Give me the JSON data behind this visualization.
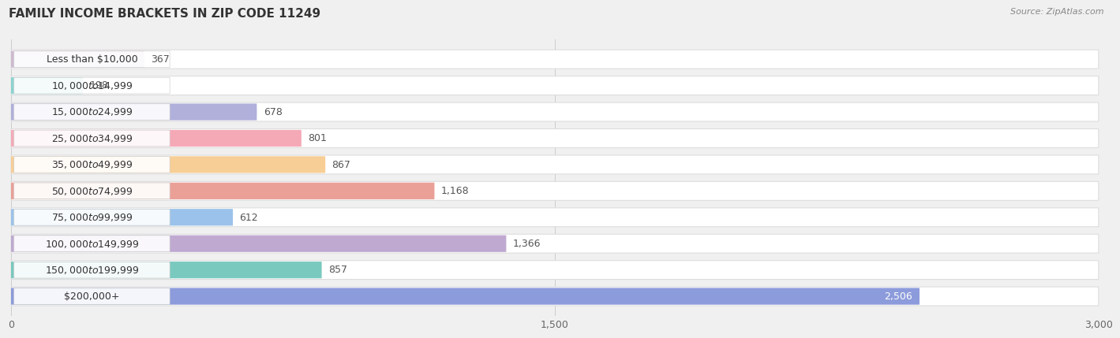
{
  "title": "FAMILY INCOME BRACKETS IN ZIP CODE 11249",
  "source": "Source: ZipAtlas.com",
  "categories": [
    "Less than $10,000",
    "$10,000 to $14,999",
    "$15,000 to $24,999",
    "$25,000 to $34,999",
    "$35,000 to $49,999",
    "$50,000 to $74,999",
    "$75,000 to $99,999",
    "$100,000 to $149,999",
    "$150,000 to $199,999",
    "$200,000+"
  ],
  "values": [
    367,
    198,
    678,
    801,
    867,
    1168,
    612,
    1366,
    857,
    2506
  ],
  "bar_colors": [
    "#c9b3cc",
    "#7ecfcb",
    "#a8a8d8",
    "#f4a0b0",
    "#f7c98a",
    "#e8968c",
    "#90bce8",
    "#b8a0cc",
    "#6cc4b8",
    "#8090d8"
  ],
  "xlim": [
    0,
    3000
  ],
  "xticks": [
    0,
    1500,
    3000
  ],
  "background_color": "#f0f0f0",
  "bar_bg_color": "#ffffff",
  "title_fontsize": 11,
  "label_fontsize": 9,
  "value_fontsize": 9,
  "bar_height": 0.7
}
